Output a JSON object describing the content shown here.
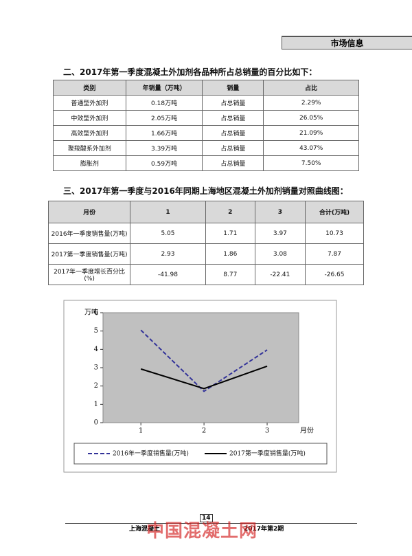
{
  "header": {
    "tag": "市场信息"
  },
  "section1": {
    "title": "二、2017年第一季度混凝土外加剂各品种所占总销量的百分比如下：",
    "table": {
      "header": [
        "类别",
        "年销量（万吨）",
        "销量",
        "占比"
      ],
      "rows": [
        [
          "普通型外加剂",
          "0.18万吨",
          "占总销量",
          "2.29%"
        ],
        [
          "中效型外加剂",
          "2.05万吨",
          "占总销量",
          "26.05%"
        ],
        [
          "高效型外加剂",
          "1.66万吨",
          "占总销量",
          "21.09%"
        ],
        [
          "聚羧酸系外加剂",
          "3.39万吨",
          "占总销量",
          "43.07%"
        ],
        [
          "膨胀剂",
          "0.59万吨",
          "占总销量",
          "7.50%"
        ]
      ]
    }
  },
  "section2": {
    "title": "三、2017年第一季度与2016年同期上海地区混凝土外加剂销量对照曲线图：",
    "table": {
      "header": [
        "月份",
        "1",
        "2",
        "3",
        "合计(万吨)"
      ],
      "rows": [
        [
          "2016年一季度销售量(万吨)",
          "5.05",
          "1.71",
          "3.97",
          "10.73"
        ],
        [
          "2017第一季度销售量(万吨)",
          "2.93",
          "1.86",
          "3.08",
          "7.87"
        ],
        [
          "2017年一季度增长百分比(%)",
          "-41.98",
          "8.77",
          "-22.41",
          "-26.65"
        ]
      ]
    }
  },
  "chart_data": {
    "type": "line",
    "ylabel": "万吨",
    "xlabel": "月份",
    "x": [
      1,
      2,
      3
    ],
    "xlim": [
      0.4,
      3.5
    ],
    "xticks": [
      1,
      2,
      3
    ],
    "ylim": [
      0,
      6
    ],
    "yticks": [
      0,
      1,
      2,
      3,
      4,
      5,
      6
    ],
    "series": [
      {
        "name": "2016年一季度销售量(万吨)",
        "color": "#333399",
        "dashed": true,
        "values": [
          5.05,
          1.71,
          3.97
        ]
      },
      {
        "name": "2017第一季度销售量(万吨)",
        "color": "#000000",
        "dashed": false,
        "values": [
          2.93,
          1.86,
          3.08
        ]
      }
    ]
  },
  "footer": {
    "left": "上海混凝土",
    "page": "14",
    "right": "2017年第2期",
    "watermark": "中国混凝土网"
  }
}
